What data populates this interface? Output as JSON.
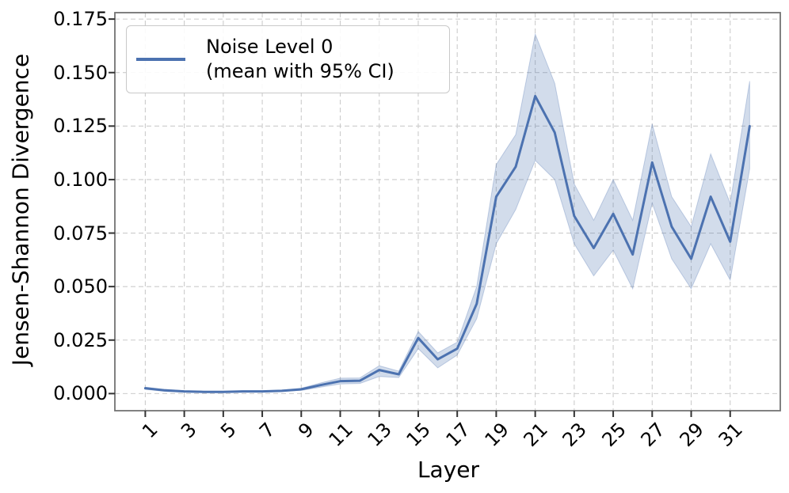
{
  "chart_data": {
    "type": "line",
    "title": "",
    "xlabel": "Layer",
    "ylabel": "Jensen-Shannon Divergence",
    "x": [
      1,
      2,
      3,
      4,
      5,
      6,
      7,
      8,
      9,
      10,
      11,
      12,
      13,
      14,
      15,
      16,
      17,
      18,
      19,
      20,
      21,
      22,
      23,
      24,
      25,
      26,
      27,
      28,
      29,
      30,
      31,
      32
    ],
    "series": [
      {
        "name": "Noise Level 0 (mean with 95% CI)",
        "values": [
          0.0025,
          0.0015,
          0.001,
          0.0008,
          0.0008,
          0.001,
          0.001,
          0.0013,
          0.002,
          0.004,
          0.0058,
          0.006,
          0.011,
          0.009,
          0.026,
          0.016,
          0.021,
          0.042,
          0.092,
          0.106,
          0.139,
          0.122,
          0.083,
          0.068,
          0.084,
          0.065,
          0.108,
          0.078,
          0.063,
          0.092,
          0.071,
          0.125
        ],
        "ci_low": [
          0.002,
          0.001,
          0.0007,
          0.0005,
          0.0005,
          0.0007,
          0.0007,
          0.001,
          0.0015,
          0.003,
          0.0045,
          0.0047,
          0.008,
          0.0075,
          0.021,
          0.012,
          0.018,
          0.035,
          0.07,
          0.086,
          0.109,
          0.1,
          0.07,
          0.055,
          0.067,
          0.049,
          0.089,
          0.063,
          0.049,
          0.07,
          0.053,
          0.105
        ],
        "ci_high": [
          0.003,
          0.002,
          0.0013,
          0.0011,
          0.0011,
          0.0013,
          0.0013,
          0.0016,
          0.0025,
          0.005,
          0.0072,
          0.0073,
          0.013,
          0.0105,
          0.029,
          0.019,
          0.024,
          0.05,
          0.107,
          0.121,
          0.168,
          0.145,
          0.098,
          0.081,
          0.1,
          0.081,
          0.126,
          0.092,
          0.078,
          0.112,
          0.089,
          0.146
        ]
      }
    ],
    "legend_lines": [
      "Noise Level 0",
      "(mean with 95% CI)"
    ],
    "legend_position": "upper-left",
    "xticks": [
      1,
      3,
      5,
      7,
      9,
      11,
      13,
      15,
      17,
      19,
      21,
      23,
      25,
      27,
      29,
      31
    ],
    "yticks": [
      0.0,
      0.025,
      0.05,
      0.075,
      0.1,
      0.125,
      0.15,
      0.175
    ],
    "ytick_format_decimals": 3,
    "xlim": [
      -0.56,
      33.57
    ],
    "ylim": [
      -0.008,
      0.178
    ],
    "grid": true,
    "colors": {
      "line": "#4C72B0",
      "ci_band": "rgba(76,114,176,0.25)",
      "grid": "#cccccc",
      "spine": "#737373",
      "tick": "#333333"
    }
  }
}
